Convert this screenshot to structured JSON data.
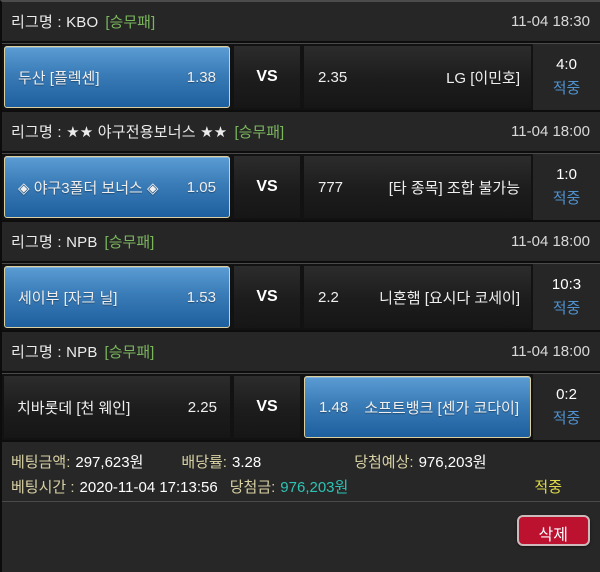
{
  "colors": {
    "selected_blue_top": "#5b9cd4",
    "selected_blue_bottom": "#1e5f9f",
    "selected_border": "#ddd0a0",
    "bet_type_green": "#79b65c",
    "hit_blue": "#4e92d0",
    "win_teal": "#2cc4b4",
    "hit_yellow": "#dedb4a",
    "label_beige": "#d8d1a4",
    "delete_red": "#bd1130"
  },
  "sections": [
    {
      "league_label": "리그명 : KBO",
      "bet_type": "[승무패]",
      "time": "11-04 18:30",
      "match": {
        "home": {
          "name": "두산 [플렉센]",
          "odds": "1.38"
        },
        "vs": "VS",
        "away": {
          "odds": "2.35",
          "name": "LG [이민호]"
        },
        "score": "4:0",
        "result": "적중"
      }
    },
    {
      "league_label": "리그명 : ★★ 야구전용보너스 ★★",
      "bet_type": "[승무패]",
      "time": "11-04 18:00",
      "match": {
        "home": {
          "name": "◈ 야구3폴더 보너스 ◈",
          "odds": "1.05"
        },
        "vs": "VS",
        "away": {
          "odds": "777",
          "name": "[타 종목] 조합 불가능"
        },
        "score": "1:0",
        "result": "적중"
      }
    },
    {
      "league_label": "리그명 : NPB",
      "bet_type": "[승무패]",
      "time": "11-04 18:00",
      "match": {
        "home": {
          "name": "세이부 [자크 닐]",
          "odds": "1.53"
        },
        "vs": "VS",
        "away": {
          "odds": "2.2",
          "name": "니혼햄 [요시다 코세이]"
        },
        "score": "10:3",
        "result": "적중"
      }
    },
    {
      "league_label": "리그명 : NPB",
      "bet_type": "[승무패]",
      "time": "11-04 18:00",
      "match": {
        "home": {
          "name": "치바롯데 [천 웨인]",
          "odds": "2.25"
        },
        "vs": "VS",
        "away": {
          "odds": "1.48",
          "name": "소프트뱅크 [센가 코다이]"
        },
        "score": "0:2",
        "result": "적중"
      }
    }
  ],
  "summary": {
    "bet_amount_label": "베팅금액:",
    "bet_amount_value": "297,623원",
    "odds_label": "배당률:",
    "odds_value": "3.28",
    "expected_label": "당첨예상:",
    "expected_value": "976,203원",
    "bet_time_label": "베팅시간 :",
    "bet_time_value": "2020-11-04 17:13:56",
    "win_label": "당첨금:",
    "win_value": "976,203원",
    "result": "적중"
  },
  "actions": {
    "delete_label": "삭제"
  }
}
